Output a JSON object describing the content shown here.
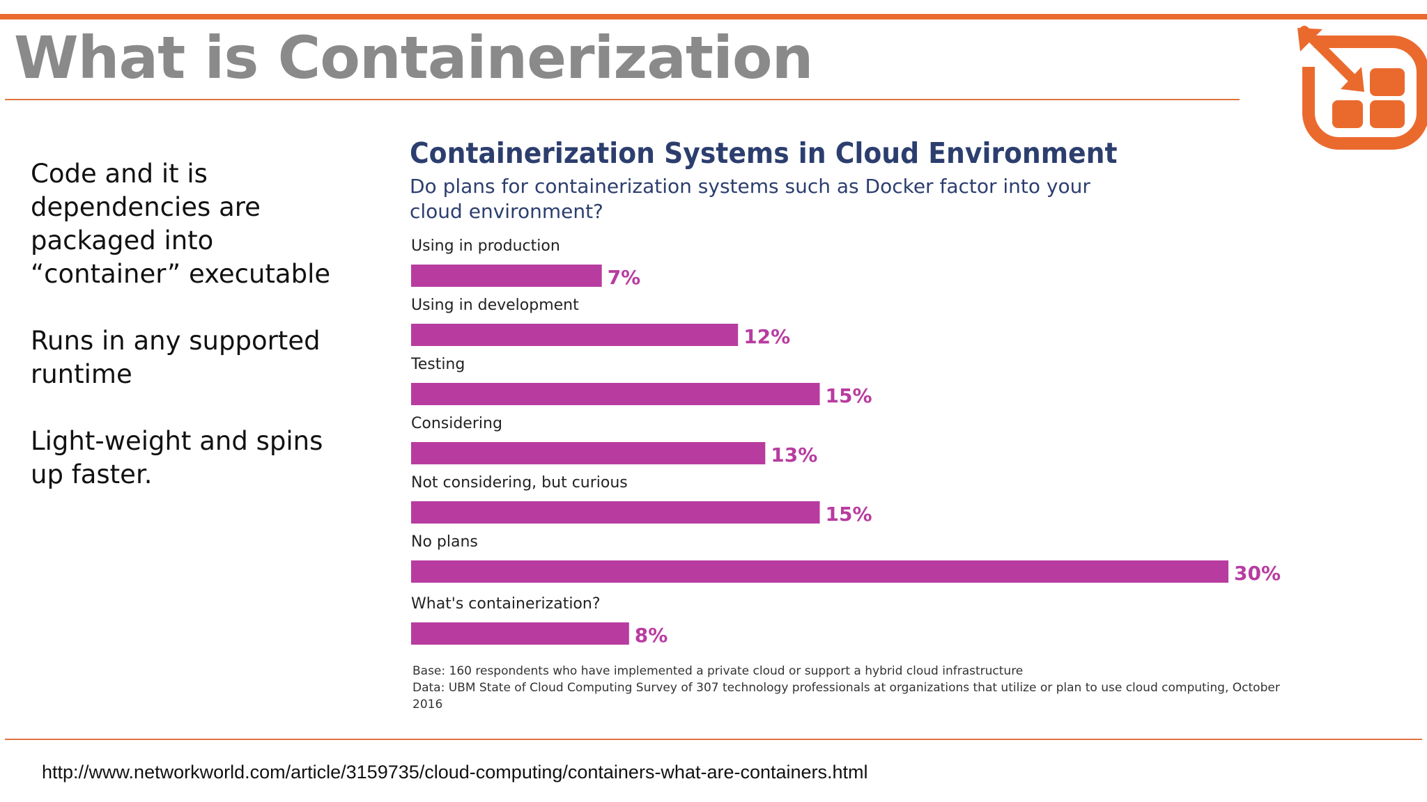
{
  "slide": {
    "title": "What is Containerization",
    "bullets": [
      "Code and it is dependencies are packaged into “container” executable",
      "Runs in any supported runtime",
      "Light-weight and spins up faster."
    ],
    "source_url": "http://www.networkworld.com/article/3159735/cloud-computing/containers-what-are-containers.html",
    "accent_color": "#ea6a2e",
    "logo_icon": "container-arrow-logo-icon"
  },
  "chart_data": {
    "type": "bar",
    "orientation": "horizontal",
    "title": "Containerization Systems in Cloud Environment",
    "subtitle": "Do plans for containerization systems such as Docker factor into your cloud environment?",
    "categories": [
      "Using in production",
      "Using in development",
      "Testing",
      "Considering",
      "Not considering, but curious",
      "No plans",
      "What's containerization?"
    ],
    "values": [
      7,
      12,
      15,
      13,
      15,
      30,
      8
    ],
    "value_labels": [
      "7%",
      "12%",
      "15%",
      "13%",
      "15%",
      "30%",
      "8%"
    ],
    "unit": "%",
    "xlim": [
      0,
      30
    ],
    "bar_color": "#b83ca0",
    "grid": false,
    "notes": [
      "Base: 160 respondents who have implemented a private cloud or support a hybrid cloud infrastructure",
      "Data: UBM State of Cloud Computing Survey of 307 technology professionals at organizations that utilize or plan to use cloud computing, October 2016"
    ]
  }
}
